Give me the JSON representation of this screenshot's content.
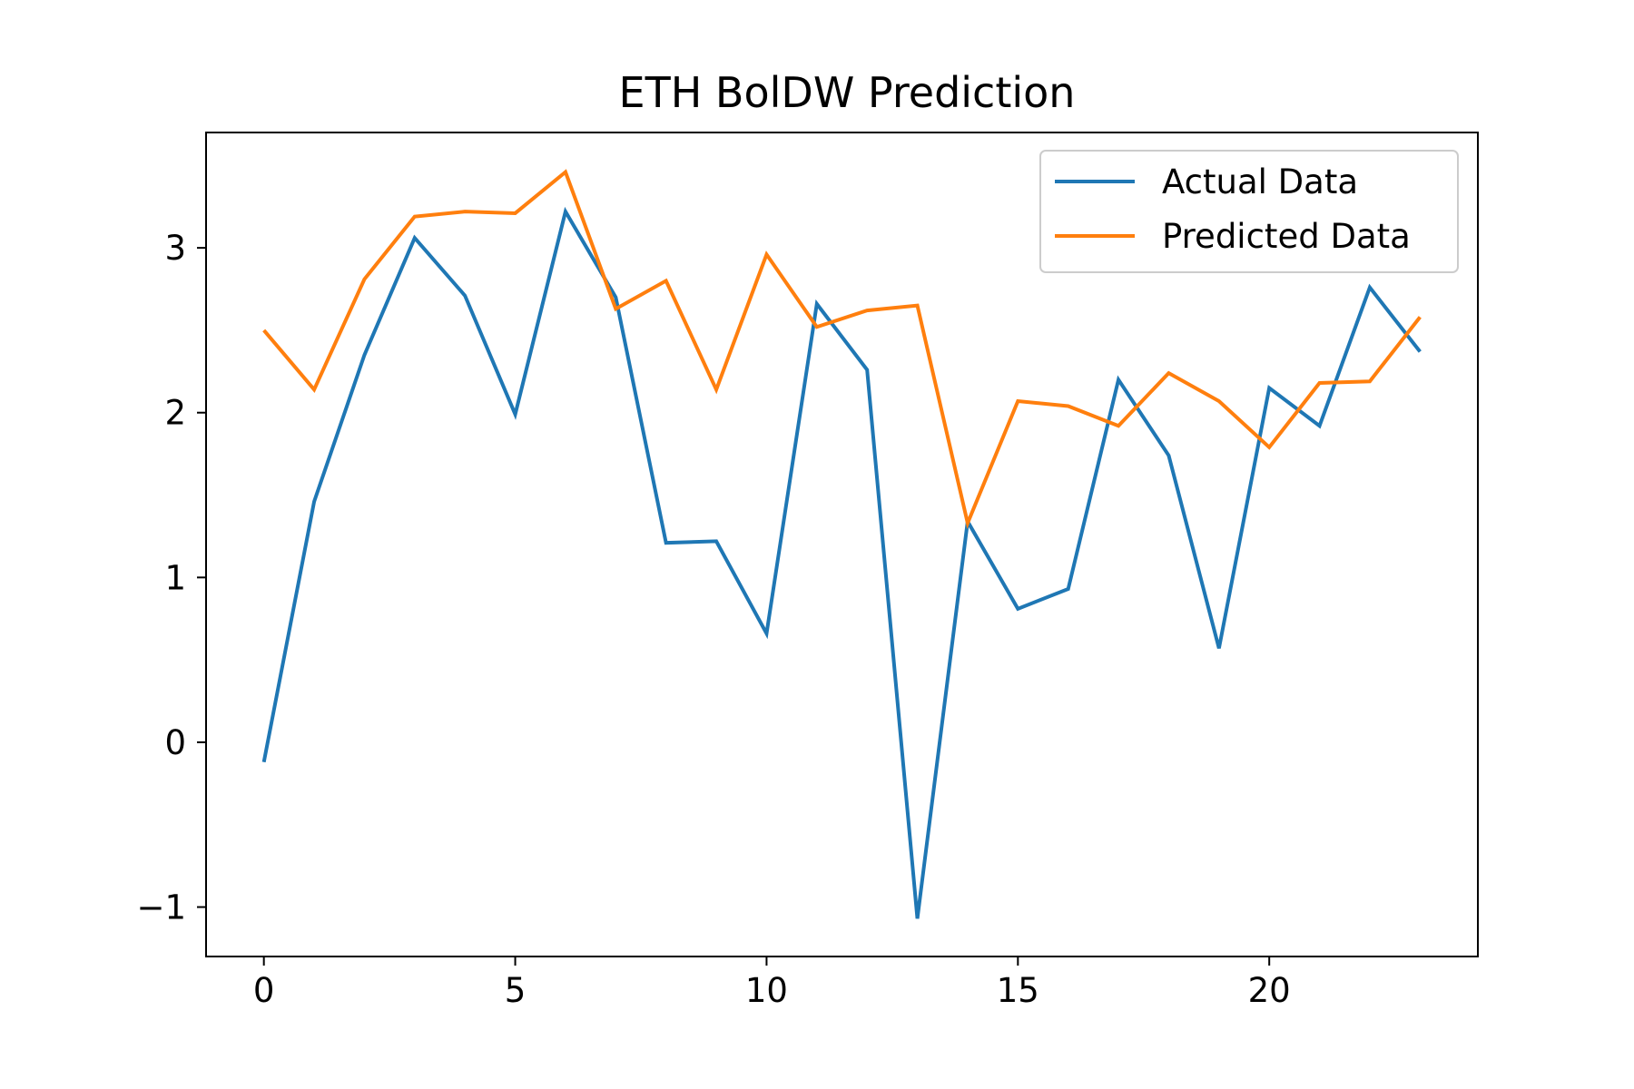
{
  "chart_data": {
    "type": "line",
    "title": "ETH BolDW Prediction",
    "xlabel": "",
    "ylabel": "",
    "xlim": [
      -1.15,
      24.15
    ],
    "ylim": [
      -1.3,
      3.7
    ],
    "x_ticks": [
      0,
      5,
      10,
      15,
      20
    ],
    "y_ticks": [
      -1,
      0,
      1,
      2,
      3
    ],
    "x_tick_labels": [
      "0",
      "5",
      "10",
      "15",
      "20"
    ],
    "y_tick_labels": [
      "−1",
      "0",
      "1",
      "2",
      "3"
    ],
    "grid": false,
    "legend_position": "top-right",
    "x": [
      0,
      1,
      2,
      3,
      4,
      5,
      6,
      7,
      8,
      9,
      10,
      11,
      12,
      13,
      14,
      15,
      16,
      17,
      18,
      19,
      20,
      21,
      22,
      23
    ],
    "series": [
      {
        "name": "Actual Data",
        "color": "#1f77b4",
        "values": [
          -0.12,
          1.46,
          2.35,
          3.06,
          2.71,
          1.99,
          3.22,
          2.7,
          1.21,
          1.22,
          0.66,
          2.66,
          2.26,
          -1.07,
          1.34,
          0.81,
          0.93,
          2.2,
          1.74,
          0.57,
          2.15,
          1.92,
          2.76,
          2.37
        ]
      },
      {
        "name": "Predicted Data",
        "color": "#ff7f0e",
        "values": [
          2.5,
          2.14,
          2.81,
          3.19,
          3.22,
          3.21,
          3.46,
          2.63,
          2.8,
          2.14,
          2.96,
          2.52,
          2.62,
          2.65,
          1.33,
          2.07,
          2.04,
          1.92,
          2.24,
          2.07,
          1.79,
          2.18,
          2.19,
          2.58
        ]
      }
    ]
  }
}
